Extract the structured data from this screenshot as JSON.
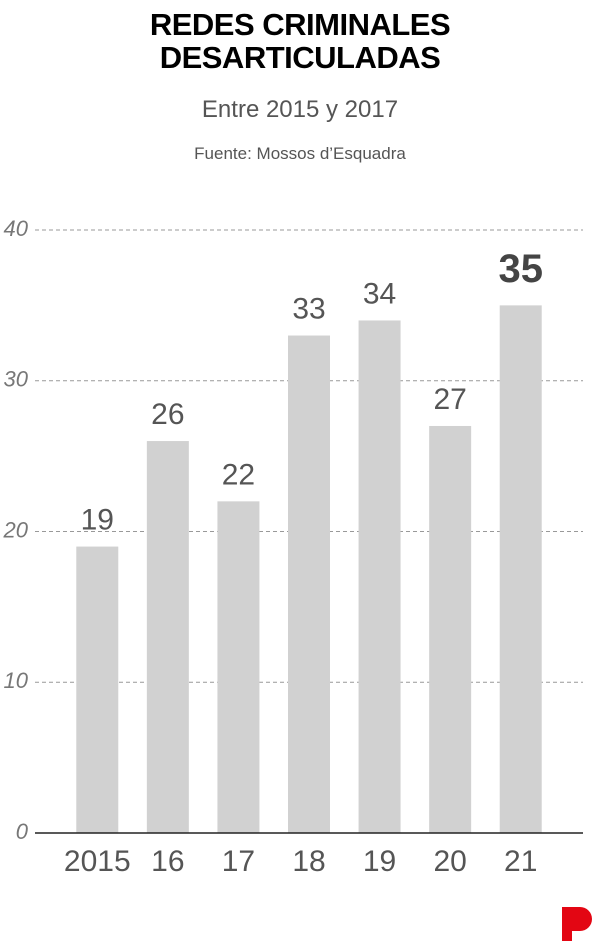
{
  "chart_data": {
    "type": "bar",
    "title": "REDES CRIMINALES DESARTICULADAS",
    "subtitle": "Entre 2015 y 2017",
    "source": "Fuente: Mossos d’Esquadra",
    "categories": [
      "2015",
      "16",
      "17",
      "18",
      "19",
      "20",
      "21"
    ],
    "values": [
      19,
      26,
      22,
      33,
      34,
      27,
      35
    ],
    "color": "#d1d1d1",
    "ylim": [
      0,
      40
    ],
    "yticks": [
      0,
      10,
      20,
      30,
      40
    ],
    "grid": true
  }
}
